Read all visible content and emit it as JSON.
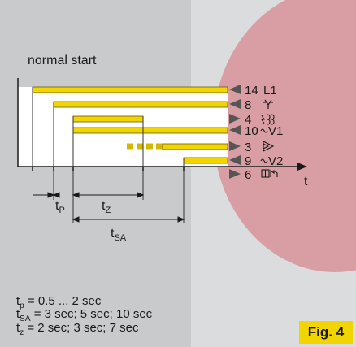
{
  "heading": "normal start",
  "axis": {
    "t_label": "t"
  },
  "intervals": {
    "tp": {
      "main": "t",
      "sub": "P"
    },
    "tz": {
      "main": "t",
      "sub": "Z"
    },
    "tsa": {
      "main": "t",
      "sub": "SA"
    }
  },
  "channels": [
    {
      "num": "14",
      "label": "L1",
      "icon": "l1-text"
    },
    {
      "num": "8",
      "label": "",
      "icon": "fork-icon"
    },
    {
      "num": "4",
      "label": "",
      "icon": "spark-coil-icon"
    },
    {
      "num": "10",
      "label": "V1",
      "icon": "valve-icon"
    },
    {
      "num": "3",
      "label": "",
      "icon": "flame-icon"
    },
    {
      "num": "9",
      "label": "V2",
      "icon": "valve-icon"
    },
    {
      "num": "6",
      "label": "",
      "icon": "motor-icon"
    }
  ],
  "legend": [
    {
      "sym": "t",
      "sub": "p",
      "text": "= 0.5 ... 2 sec"
    },
    {
      "sym": "t",
      "sub": "SA",
      "text": "= 3 sec; 5 sec; 10 sec"
    },
    {
      "sym": "t",
      "sub": "z",
      "text": "= 2 sec; 3 sec; 7 sec"
    }
  ],
  "figure_label": "Fig. 4",
  "colors": {
    "bar": "#f2d400",
    "bar_edge": "#6b5a00",
    "arrow": "#555555",
    "circle": "#d99ea3"
  }
}
